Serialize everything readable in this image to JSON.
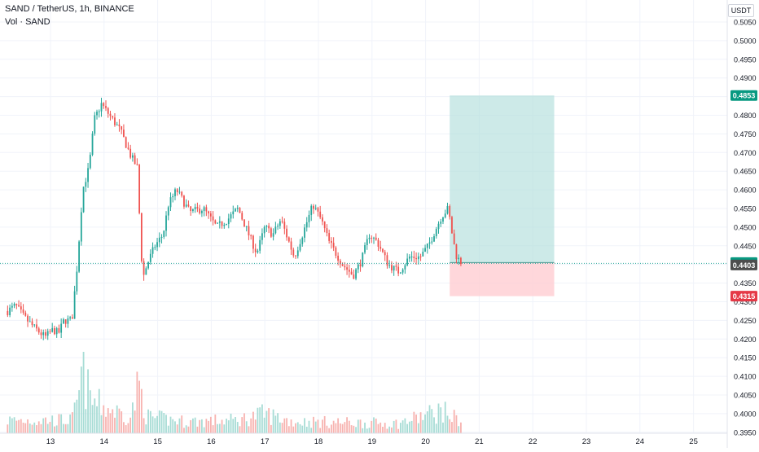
{
  "header": {
    "title": "SAND / TetherUS, 1h, BINANCE",
    "volume_label": "Vol · SAND"
  },
  "axis": {
    "currency": "USDT"
  },
  "chart_data": {
    "type": "candlestick",
    "title": "SAND / TetherUS, 1h, BINANCE",
    "x_tick_labels": [
      "13",
      "14",
      "15",
      "16",
      "17",
      "18",
      "19",
      "20",
      "21",
      "22",
      "23",
      "24",
      "25"
    ],
    "y_tick_labels": [
      "0.5050",
      "0.5000",
      "0.4950",
      "0.4900",
      "0.4850",
      "0.4800",
      "0.4750",
      "0.4700",
      "0.4650",
      "0.4600",
      "0.4550",
      "0.4500",
      "0.4450",
      "0.4400",
      "0.4350",
      "0.4300",
      "0.4250",
      "0.4200",
      "0.4150",
      "0.4100",
      "0.4050",
      "0.4000",
      "0.3950"
    ],
    "ylim": [
      0.3935,
      0.5075
    ],
    "xlim_days": [
      12.2,
      25.7
    ],
    "grid": true,
    "colors": {
      "up": "#26a69a",
      "down": "#ef5350",
      "target_zone": "#b2dfdb",
      "stop_zone": "#ffcdd2",
      "last_price": "#4d4d4d"
    },
    "price_key_points": [
      [
        12.2,
        0.4275
      ],
      [
        12.35,
        0.429
      ],
      [
        12.5,
        0.426
      ],
      [
        12.7,
        0.423
      ],
      [
        12.9,
        0.4205
      ],
      [
        13.05,
        0.4225
      ],
      [
        13.15,
        0.4215
      ],
      [
        13.25,
        0.425
      ],
      [
        13.4,
        0.425
      ],
      [
        13.5,
        0.44
      ],
      [
        13.6,
        0.46
      ],
      [
        13.72,
        0.466
      ],
      [
        13.82,
        0.479
      ],
      [
        13.95,
        0.483
      ],
      [
        14.1,
        0.48
      ],
      [
        14.3,
        0.476
      ],
      [
        14.5,
        0.469
      ],
      [
        14.62,
        0.466
      ],
      [
        14.67,
        0.45
      ],
      [
        14.72,
        0.436
      ],
      [
        14.8,
        0.44
      ],
      [
        14.95,
        0.445
      ],
      [
        15.1,
        0.448
      ],
      [
        15.2,
        0.456
      ],
      [
        15.35,
        0.46
      ],
      [
        15.6,
        0.454
      ],
      [
        15.85,
        0.455
      ],
      [
        16.1,
        0.45
      ],
      [
        16.3,
        0.452
      ],
      [
        16.5,
        0.455
      ],
      [
        16.7,
        0.448
      ],
      [
        16.85,
        0.443
      ],
      [
        17.0,
        0.45
      ],
      [
        17.15,
        0.448
      ],
      [
        17.3,
        0.452
      ],
      [
        17.55,
        0.442
      ],
      [
        17.7,
        0.448
      ],
      [
        17.9,
        0.456
      ],
      [
        18.05,
        0.452
      ],
      [
        18.2,
        0.446
      ],
      [
        18.45,
        0.44
      ],
      [
        18.65,
        0.437
      ],
      [
        18.8,
        0.441
      ],
      [
        18.95,
        0.448
      ],
      [
        19.1,
        0.446
      ],
      [
        19.3,
        0.44
      ],
      [
        19.5,
        0.438
      ],
      [
        19.7,
        0.442
      ],
      [
        19.9,
        0.442
      ],
      [
        20.05,
        0.445
      ],
      [
        20.3,
        0.453
      ],
      [
        20.42,
        0.455
      ],
      [
        20.52,
        0.446
      ],
      [
        20.58,
        0.442
      ],
      [
        20.68,
        0.4403
      ]
    ],
    "volume_key_points": [
      [
        12.2,
        0.2
      ],
      [
        13.4,
        0.2
      ],
      [
        13.5,
        0.45
      ],
      [
        13.6,
        0.95
      ],
      [
        13.75,
        0.5
      ],
      [
        14.0,
        0.4
      ],
      [
        14.5,
        0.25
      ],
      [
        14.65,
        0.75
      ],
      [
        14.8,
        0.25
      ],
      [
        15.5,
        0.18
      ],
      [
        16.5,
        0.2
      ],
      [
        17.0,
        0.3
      ],
      [
        17.5,
        0.18
      ],
      [
        19.5,
        0.15
      ],
      [
        20.3,
        0.35
      ],
      [
        20.5,
        0.25
      ],
      [
        20.68,
        0.2
      ]
    ],
    "last_price": 0.4403,
    "position": {
      "entry": 0.4405,
      "target": 0.4853,
      "stop": 0.4315,
      "x_start_day": 20.45,
      "x_end_day": 22.4,
      "entry_label": "0.4405",
      "target_label": "0.4853",
      "stop_label": "0.4315",
      "last_label": "0.4403"
    }
  }
}
